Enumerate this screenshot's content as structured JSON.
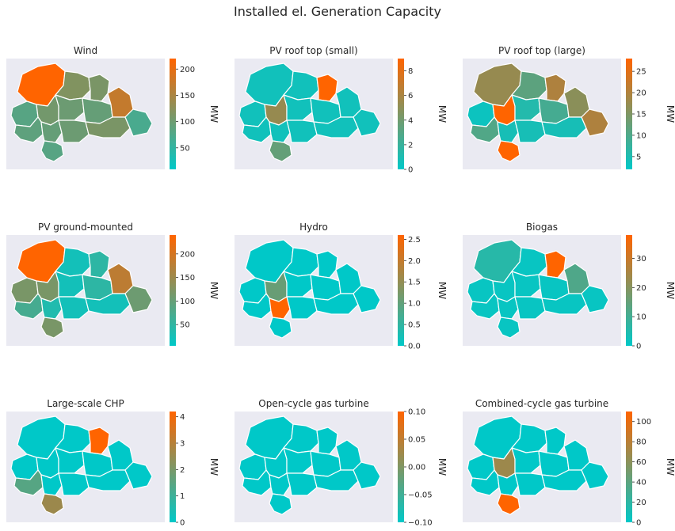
{
  "figure": {
    "title": "Installed el. Generation Capacity"
  },
  "colors": {
    "low": "#00c8c8",
    "high": "#ff6400",
    "axes_bg": "#eaeaf2",
    "border": "#ffffff"
  },
  "chart_data": [
    {
      "type": "choropleth",
      "title": "Wind",
      "cbar_label": "MW",
      "vmin": 9,
      "vmax": 220,
      "ticks": [
        "50",
        "100",
        "150",
        "200"
      ],
      "regions": [
        {
          "id": "NW",
          "value": 220
        },
        {
          "id": "N",
          "value": 100
        },
        {
          "id": "NE",
          "value": 95
        },
        {
          "id": "W",
          "value": 70
        },
        {
          "id": "CW",
          "value": 90
        },
        {
          "id": "C",
          "value": 85
        },
        {
          "id": "CE",
          "value": 80
        },
        {
          "id": "E",
          "value": 160
        },
        {
          "id": "SW",
          "value": 75
        },
        {
          "id": "S1",
          "value": 80
        },
        {
          "id": "S2",
          "value": 70
        },
        {
          "id": "SE",
          "value": 85
        },
        {
          "id": "FE",
          "value": 95
        },
        {
          "id": "BS",
          "value": 60
        }
      ]
    },
    {
      "type": "choropleth",
      "title": "PV roof top (small)",
      "cbar_label": "MW",
      "vmin": 0,
      "vmax": 9,
      "ticks": [
        "0",
        "2",
        "4",
        "6",
        "8"
      ],
      "regions": [
        {
          "id": "NW",
          "value": 0.5
        },
        {
          "id": "N",
          "value": 0.5
        },
        {
          "id": "NE",
          "value": 9
        },
        {
          "id": "W",
          "value": 0.5
        },
        {
          "id": "CW",
          "value": 4.5
        },
        {
          "id": "C",
          "value": 0.5
        },
        {
          "id": "CE",
          "value": 0.5
        },
        {
          "id": "E",
          "value": 0.5
        },
        {
          "id": "SW",
          "value": 0.5
        },
        {
          "id": "S1",
          "value": 0.5
        },
        {
          "id": "S2",
          "value": 3
        },
        {
          "id": "SE",
          "value": 0.5
        },
        {
          "id": "FE",
          "value": 0.5
        },
        {
          "id": "BS",
          "value": 0.5
        }
      ]
    },
    {
      "type": "choropleth",
      "title": "PV roof top (large)",
      "cbar_label": "MW",
      "vmin": 2,
      "vmax": 28,
      "ticks": [
        "5",
        "10",
        "15",
        "20",
        "25"
      ],
      "regions": [
        {
          "id": "NW",
          "value": 15
        },
        {
          "id": "N",
          "value": 10
        },
        {
          "id": "NE",
          "value": 18
        },
        {
          "id": "W",
          "value": 3
        },
        {
          "id": "CW",
          "value": 28
        },
        {
          "id": "C",
          "value": 5
        },
        {
          "id": "CE",
          "value": 8
        },
        {
          "id": "E",
          "value": 14
        },
        {
          "id": "SW",
          "value": 9
        },
        {
          "id": "S1",
          "value": 4
        },
        {
          "id": "S2",
          "value": 28
        },
        {
          "id": "SE",
          "value": 4
        },
        {
          "id": "FE",
          "value": 4
        },
        {
          "id": "BS",
          "value": 18
        }
      ]
    },
    {
      "type": "choropleth",
      "title": "PV ground-mounted",
      "cbar_label": "MW",
      "vmin": 5,
      "vmax": 240,
      "ticks": [
        "50",
        "100",
        "150",
        "200"
      ],
      "regions": [
        {
          "id": "NW",
          "value": 240
        },
        {
          "id": "N",
          "value": 20
        },
        {
          "id": "NE",
          "value": 40
        },
        {
          "id": "W",
          "value": 100
        },
        {
          "id": "CW",
          "value": 100
        },
        {
          "id": "C",
          "value": 20
        },
        {
          "id": "CE",
          "value": 40
        },
        {
          "id": "E",
          "value": 165
        },
        {
          "id": "SW",
          "value": 60
        },
        {
          "id": "S1",
          "value": 30
        },
        {
          "id": "S2",
          "value": 100
        },
        {
          "id": "SE",
          "value": 20
        },
        {
          "id": "FE",
          "value": 20
        },
        {
          "id": "BS",
          "value": 90
        }
      ]
    },
    {
      "type": "choropleth",
      "title": "Hydro",
      "cbar_label": "MW",
      "vmin": 0,
      "vmax": 2.6,
      "ticks": [
        "0.0",
        "0.5",
        "1.0",
        "1.5",
        "2.0",
        "2.5"
      ],
      "regions": [
        {
          "id": "NW",
          "value": 0
        },
        {
          "id": "N",
          "value": 0
        },
        {
          "id": "NE",
          "value": 0
        },
        {
          "id": "W",
          "value": 0
        },
        {
          "id": "CW",
          "value": 0.9
        },
        {
          "id": "C",
          "value": 0
        },
        {
          "id": "CE",
          "value": 0
        },
        {
          "id": "E",
          "value": 0
        },
        {
          "id": "SW",
          "value": 0
        },
        {
          "id": "S1",
          "value": 2.6
        },
        {
          "id": "S2",
          "value": 0
        },
        {
          "id": "SE",
          "value": 0
        },
        {
          "id": "FE",
          "value": 0
        },
        {
          "id": "BS",
          "value": 0
        }
      ]
    },
    {
      "type": "choropleth",
      "title": "Biogas",
      "cbar_label": "MW",
      "vmin": 0,
      "vmax": 38,
      "ticks": [
        "0",
        "10",
        "20",
        "30"
      ],
      "regions": [
        {
          "id": "NW",
          "value": 5
        },
        {
          "id": "N",
          "value": 1
        },
        {
          "id": "NE",
          "value": 38
        },
        {
          "id": "W",
          "value": 1
        },
        {
          "id": "CW",
          "value": 1
        },
        {
          "id": "C",
          "value": 1
        },
        {
          "id": "CE",
          "value": 1
        },
        {
          "id": "E",
          "value": 10
        },
        {
          "id": "SW",
          "value": 1
        },
        {
          "id": "S1",
          "value": 1
        },
        {
          "id": "S2",
          "value": 1
        },
        {
          "id": "SE",
          "value": 1
        },
        {
          "id": "FE",
          "value": 1
        },
        {
          "id": "BS",
          "value": 1
        }
      ]
    },
    {
      "type": "choropleth",
      "title": "Large-scale CHP",
      "cbar_label": "MW",
      "vmin": 0,
      "vmax": 4.2,
      "ticks": [
        "0",
        "1",
        "2",
        "3",
        "4"
      ],
      "regions": [
        {
          "id": "NW",
          "value": 0
        },
        {
          "id": "N",
          "value": 0
        },
        {
          "id": "NE",
          "value": 4.2
        },
        {
          "id": "W",
          "value": 0
        },
        {
          "id": "CW",
          "value": 0
        },
        {
          "id": "C",
          "value": 0
        },
        {
          "id": "CE",
          "value": 0
        },
        {
          "id": "E",
          "value": 0
        },
        {
          "id": "SW",
          "value": 1.2
        },
        {
          "id": "S1",
          "value": 0
        },
        {
          "id": "S2",
          "value": 2.2
        },
        {
          "id": "SE",
          "value": 0
        },
        {
          "id": "FE",
          "value": 0
        },
        {
          "id": "BS",
          "value": 0
        }
      ]
    },
    {
      "type": "choropleth",
      "title": "Open-cycle gas turbine",
      "cbar_label": "MW",
      "vmin": -0.1,
      "vmax": 0.1,
      "ticks": [
        "−0.10",
        "−0.05",
        "0.00",
        "0.05",
        "0.10"
      ],
      "regions": [
        {
          "id": "NW",
          "value": -0.1
        },
        {
          "id": "N",
          "value": -0.1
        },
        {
          "id": "NE",
          "value": -0.1
        },
        {
          "id": "W",
          "value": -0.1
        },
        {
          "id": "CW",
          "value": -0.1
        },
        {
          "id": "C",
          "value": -0.1
        },
        {
          "id": "CE",
          "value": -0.1
        },
        {
          "id": "E",
          "value": -0.1
        },
        {
          "id": "SW",
          "value": -0.1
        },
        {
          "id": "S1",
          "value": -0.1
        },
        {
          "id": "S2",
          "value": -0.1
        },
        {
          "id": "SE",
          "value": -0.1
        },
        {
          "id": "FE",
          "value": -0.1
        },
        {
          "id": "BS",
          "value": -0.1
        }
      ]
    },
    {
      "type": "choropleth",
      "title": "Combined-cycle gas turbine",
      "cbar_label": "MW",
      "vmin": 0,
      "vmax": 110,
      "ticks": [
        "0",
        "20",
        "40",
        "60",
        "80",
        "100"
      ],
      "regions": [
        {
          "id": "NW",
          "value": 0
        },
        {
          "id": "N",
          "value": 0
        },
        {
          "id": "NE",
          "value": 0
        },
        {
          "id": "W",
          "value": 0
        },
        {
          "id": "CW",
          "value": 58
        },
        {
          "id": "C",
          "value": 0
        },
        {
          "id": "CE",
          "value": 0
        },
        {
          "id": "E",
          "value": 0
        },
        {
          "id": "SW",
          "value": 0
        },
        {
          "id": "S1",
          "value": 0
        },
        {
          "id": "S2",
          "value": 110
        },
        {
          "id": "SE",
          "value": 0
        },
        {
          "id": "FE",
          "value": 0
        },
        {
          "id": "BS",
          "value": 0
        }
      ]
    }
  ]
}
